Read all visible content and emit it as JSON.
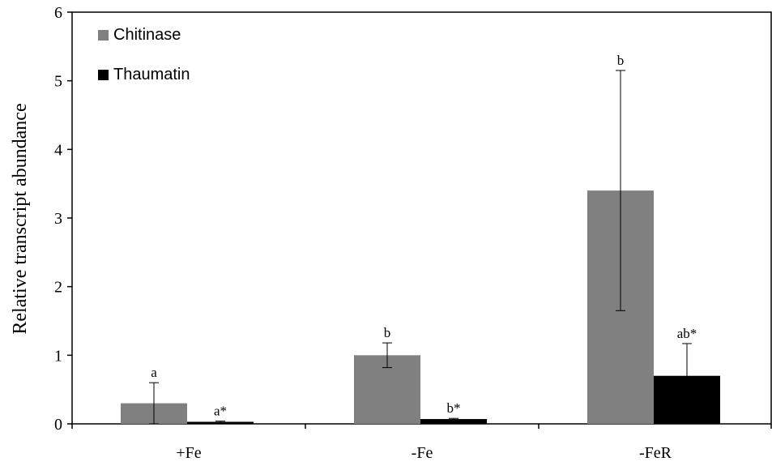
{
  "chart_data": {
    "type": "bar",
    "title": "",
    "xlabel": "",
    "ylabel": "Relative transcript abundance",
    "ylim": [
      0,
      6
    ],
    "yticks": [
      0,
      1,
      2,
      3,
      4,
      5,
      6
    ],
    "grid": false,
    "legend_position": "top-left",
    "categories": [
      "+Fe",
      "-Fe",
      "-FeR"
    ],
    "series": [
      {
        "name": "Chitinase",
        "color": "#808080",
        "values": [
          0.3,
          1.0,
          3.4
        ],
        "error": [
          0.3,
          0.18,
          1.75
        ],
        "labels": [
          "a",
          "b",
          "b"
        ]
      },
      {
        "name": "Thaumatin",
        "color": "#000000",
        "values": [
          0.03,
          0.07,
          0.7
        ],
        "error": [
          0.01,
          0.01,
          0.47
        ],
        "labels": [
          "a*",
          "b*",
          "ab*"
        ]
      }
    ]
  }
}
